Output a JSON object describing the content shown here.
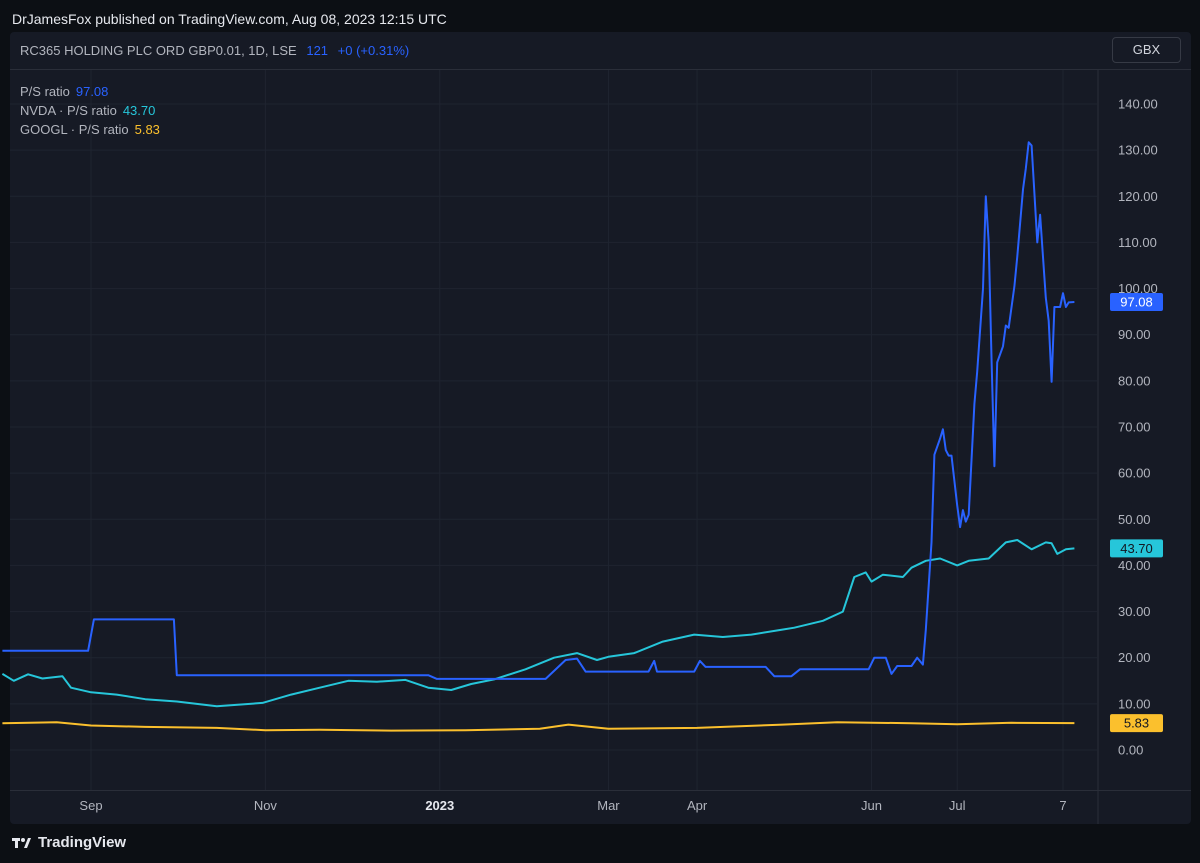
{
  "publisher_line": "DrJamesFox published on TradingView.com, Aug 08, 2023 12:15 UTC",
  "header": {
    "symbol": "RC365 HOLDING PLC ORD GBP0.01, 1D, LSE",
    "price": "121",
    "change": "+0 (+0.31%)",
    "currency": "GBX"
  },
  "legend": [
    {
      "label": "P/S ratio",
      "value": "97.08",
      "color": "#2962ff"
    },
    {
      "label": "NVDA · P/S ratio",
      "value": "43.70",
      "color": "#26c6da"
    },
    {
      "label": "GOOGL · P/S ratio",
      "value": "5.83",
      "color": "#fbc02d"
    }
  ],
  "footer": {
    "brand": "TradingView"
  },
  "colors": {
    "background": "#161a25",
    "grid": "#1f2430",
    "axis_text": "#b2b5be"
  },
  "chart_data": {
    "type": "line",
    "xlabel": "",
    "ylabel": "",
    "x_range": [
      "2022-08-01",
      "2023-08-08"
    ],
    "ylim": [
      -4.5,
      145
    ],
    "yticks": [
      "0.00",
      "10.00",
      "20.00",
      "30.00",
      "40.00",
      "50.00",
      "60.00",
      "70.00",
      "80.00",
      "90.00",
      "100.00",
      "110.00",
      "120.00",
      "130.00",
      "140.00"
    ],
    "x_ticks": [
      {
        "label": "Sep",
        "date": "2022-09-01",
        "bold": false
      },
      {
        "label": "Nov",
        "date": "2022-11-01",
        "bold": false
      },
      {
        "label": "2023",
        "date": "2023-01-01",
        "bold": true
      },
      {
        "label": "Mar",
        "date": "2023-03-01",
        "bold": false
      },
      {
        "label": "Apr",
        "date": "2023-04-01",
        "bold": false
      },
      {
        "label": "Jun",
        "date": "2023-06-01",
        "bold": false
      },
      {
        "label": "Jul",
        "date": "2023-07-01",
        "bold": false
      },
      {
        "label": "7",
        "date": "2023-08-07",
        "bold": false
      }
    ],
    "grid": true,
    "series": [
      {
        "name": "P/S ratio",
        "color": "#2962ff",
        "last_value": "97.08",
        "points": [
          [
            "2022-08-01",
            21.5
          ],
          [
            "2022-08-31",
            21.5
          ],
          [
            "2022-09-02",
            28.3
          ],
          [
            "2022-09-30",
            28.3
          ],
          [
            "2022-10-01",
            16.2
          ],
          [
            "2022-10-28",
            16.2
          ],
          [
            "2022-11-30",
            16.2
          ],
          [
            "2022-12-28",
            16.2
          ],
          [
            "2022-12-31",
            15.4
          ],
          [
            "2023-01-31",
            15.4
          ],
          [
            "2023-02-07",
            15.4
          ],
          [
            "2023-02-14",
            19.5
          ],
          [
            "2023-02-18",
            19.8
          ],
          [
            "2023-02-21",
            17.0
          ],
          [
            "2023-03-15",
            17.0
          ],
          [
            "2023-03-17",
            19.3
          ],
          [
            "2023-03-18",
            17.0
          ],
          [
            "2023-03-31",
            17.0
          ],
          [
            "2023-04-02",
            19.3
          ],
          [
            "2023-04-04",
            18.0
          ],
          [
            "2023-04-25",
            18.0
          ],
          [
            "2023-04-28",
            16.0
          ],
          [
            "2023-05-04",
            16.0
          ],
          [
            "2023-05-07",
            17.5
          ],
          [
            "2023-05-31",
            17.5
          ],
          [
            "2023-06-02",
            20.0
          ],
          [
            "2023-06-06",
            20.0
          ],
          [
            "2023-06-08",
            16.5
          ],
          [
            "2023-06-10",
            18.2
          ],
          [
            "2023-06-15",
            18.2
          ],
          [
            "2023-06-17",
            20.0
          ],
          [
            "2023-06-19",
            18.5
          ],
          [
            "2023-06-20",
            26.0
          ],
          [
            "2023-06-22",
            45.0
          ],
          [
            "2023-06-23",
            64.0
          ],
          [
            "2023-06-25",
            67.5
          ],
          [
            "2023-06-26",
            69.5
          ],
          [
            "2023-06-27",
            65.0
          ],
          [
            "2023-06-28",
            63.8
          ],
          [
            "2023-06-29",
            63.8
          ],
          [
            "2023-07-01",
            53.0
          ],
          [
            "2023-07-02",
            48.3
          ],
          [
            "2023-07-03",
            52.0
          ],
          [
            "2023-07-04",
            49.5
          ],
          [
            "2023-07-05",
            51.0
          ],
          [
            "2023-07-07",
            75.0
          ],
          [
            "2023-07-08",
            82.0
          ],
          [
            "2023-07-10",
            100.0
          ],
          [
            "2023-07-11",
            120.0
          ],
          [
            "2023-07-12",
            110.0
          ],
          [
            "2023-07-13",
            85.0
          ],
          [
            "2023-07-14",
            61.5
          ],
          [
            "2023-07-15",
            84.0
          ],
          [
            "2023-07-17",
            87.5
          ],
          [
            "2023-07-18",
            92.0
          ],
          [
            "2023-07-19",
            91.5
          ],
          [
            "2023-07-21",
            100.5
          ],
          [
            "2023-07-22",
            107.0
          ],
          [
            "2023-07-24",
            121.5
          ],
          [
            "2023-07-25",
            126.0
          ],
          [
            "2023-07-26",
            131.7
          ],
          [
            "2023-07-27",
            131.0
          ],
          [
            "2023-07-29",
            110.0
          ],
          [
            "2023-07-30",
            116.0
          ],
          [
            "2023-08-01",
            98.0
          ],
          [
            "2023-08-02",
            93.0
          ],
          [
            "2023-08-03",
            79.8
          ],
          [
            "2023-08-04",
            96.0
          ],
          [
            "2023-08-06",
            96.0
          ],
          [
            "2023-08-07",
            99.0
          ],
          [
            "2023-08-08",
            96.0
          ],
          [
            "2023-08-09",
            97.0
          ],
          [
            "2023-08-11",
            97.08
          ]
        ]
      },
      {
        "name": "NVDA · P/S ratio",
        "color": "#26c6da",
        "last_value": "43.70",
        "points": [
          [
            "2022-08-01",
            16.5
          ],
          [
            "2022-08-05",
            15.0
          ],
          [
            "2022-08-10",
            16.4
          ],
          [
            "2022-08-15",
            15.5
          ],
          [
            "2022-08-22",
            16.0
          ],
          [
            "2022-08-25",
            13.5
          ],
          [
            "2022-09-01",
            12.5
          ],
          [
            "2022-09-10",
            12.0
          ],
          [
            "2022-09-20",
            11.0
          ],
          [
            "2022-10-01",
            10.5
          ],
          [
            "2022-10-15",
            9.5
          ],
          [
            "2022-10-31",
            10.2
          ],
          [
            "2022-11-10",
            12.0
          ],
          [
            "2022-11-20",
            13.5
          ],
          [
            "2022-11-30",
            15.0
          ],
          [
            "2022-12-10",
            14.8
          ],
          [
            "2022-12-20",
            15.2
          ],
          [
            "2022-12-28",
            13.5
          ],
          [
            "2023-01-05",
            13.0
          ],
          [
            "2023-01-12",
            14.3
          ],
          [
            "2023-01-20",
            15.3
          ],
          [
            "2023-01-31",
            17.5
          ],
          [
            "2023-02-10",
            20.0
          ],
          [
            "2023-02-18",
            21.0
          ],
          [
            "2023-02-25",
            19.5
          ],
          [
            "2023-03-01",
            20.2
          ],
          [
            "2023-03-10",
            21.0
          ],
          [
            "2023-03-20",
            23.5
          ],
          [
            "2023-03-31",
            25.0
          ],
          [
            "2023-04-10",
            24.5
          ],
          [
            "2023-04-20",
            25.0
          ],
          [
            "2023-04-30",
            26.0
          ],
          [
            "2023-05-05",
            26.5
          ],
          [
            "2023-05-15",
            28.0
          ],
          [
            "2023-05-22",
            30.0
          ],
          [
            "2023-05-26",
            37.5
          ],
          [
            "2023-05-30",
            38.5
          ],
          [
            "2023-06-01",
            36.5
          ],
          [
            "2023-06-05",
            38.0
          ],
          [
            "2023-06-12",
            37.5
          ],
          [
            "2023-06-15",
            39.5
          ],
          [
            "2023-06-20",
            41.0
          ],
          [
            "2023-06-25",
            41.5
          ],
          [
            "2023-07-01",
            40.0
          ],
          [
            "2023-07-05",
            41.0
          ],
          [
            "2023-07-12",
            41.5
          ],
          [
            "2023-07-18",
            45.0
          ],
          [
            "2023-07-22",
            45.5
          ],
          [
            "2023-07-27",
            43.5
          ],
          [
            "2023-08-01",
            45.0
          ],
          [
            "2023-08-03",
            44.8
          ],
          [
            "2023-08-05",
            42.5
          ],
          [
            "2023-08-08",
            43.5
          ],
          [
            "2023-08-11",
            43.7
          ]
        ]
      },
      {
        "name": "GOOGL · P/S ratio",
        "color": "#fbc02d",
        "last_value": "5.83",
        "points": [
          [
            "2022-08-01",
            5.8
          ],
          [
            "2022-08-20",
            6.0
          ],
          [
            "2022-09-01",
            5.3
          ],
          [
            "2022-09-20",
            5.0
          ],
          [
            "2022-10-15",
            4.8
          ],
          [
            "2022-11-01",
            4.3
          ],
          [
            "2022-11-20",
            4.4
          ],
          [
            "2022-12-15",
            4.2
          ],
          [
            "2023-01-10",
            4.3
          ],
          [
            "2023-02-05",
            4.6
          ],
          [
            "2023-02-15",
            5.5
          ],
          [
            "2023-03-01",
            4.6
          ],
          [
            "2023-04-01",
            4.8
          ],
          [
            "2023-05-01",
            5.5
          ],
          [
            "2023-05-20",
            6.0
          ],
          [
            "2023-06-15",
            5.8
          ],
          [
            "2023-07-01",
            5.6
          ],
          [
            "2023-07-20",
            5.9
          ],
          [
            "2023-08-11",
            5.83
          ]
        ]
      }
    ]
  }
}
